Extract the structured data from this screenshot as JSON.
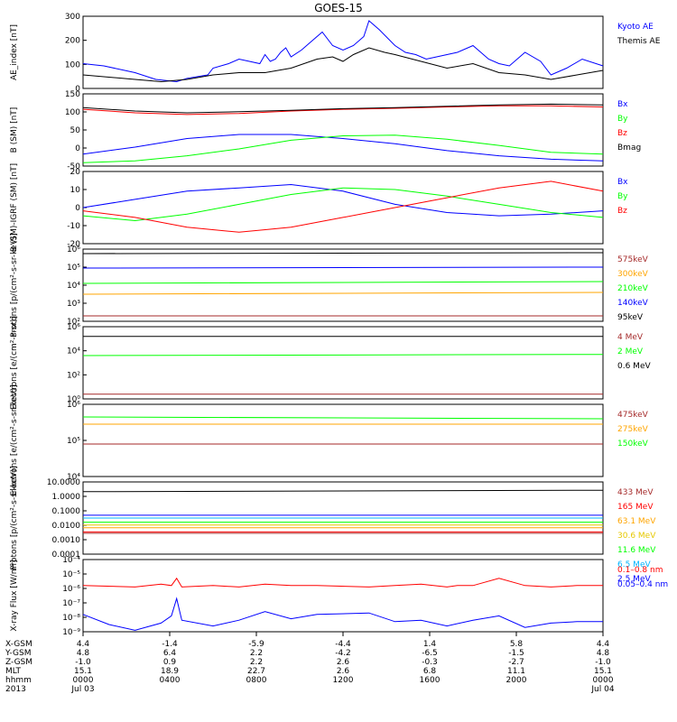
{
  "title": "GOES-15",
  "colors": {
    "black": "#000000",
    "blue": "#0000ff",
    "green": "#00ff00",
    "red": "#ff0000",
    "orange": "#ffa500",
    "yellow": "#e6c800",
    "cyan": "#00b4ff",
    "brown": "#a52a2a"
  },
  "chart_data": [
    {
      "type": "line",
      "ylabel": "AE_index [nT]",
      "yticks": [
        "300",
        "200",
        "100",
        "0"
      ],
      "yrange": [
        0,
        320
      ],
      "series": [
        {
          "name": "Kyoto AE",
          "color": "blue",
          "x": [
            0,
            4,
            8,
            10,
            14,
            18,
            20,
            24,
            25,
            28,
            30,
            32,
            34,
            35,
            36,
            37,
            38,
            39,
            40,
            42,
            44,
            46,
            48,
            50,
            52,
            54,
            55,
            57,
            60,
            62,
            64,
            66,
            68,
            70,
            72,
            75,
            78,
            80,
            82,
            85,
            88,
            90,
            93,
            96,
            100
          ],
          "y": [
            110,
            100,
            80,
            70,
            40,
            30,
            45,
            60,
            90,
            110,
            130,
            120,
            110,
            150,
            120,
            130,
            160,
            180,
            140,
            170,
            210,
            250,
            190,
            170,
            190,
            230,
            300,
            260,
            190,
            160,
            150,
            130,
            140,
            150,
            160,
            190,
            130,
            110,
            100,
            160,
            120,
            60,
            90,
            130,
            100
          ]
        },
        {
          "name": "Themis AE",
          "color": "black",
          "x": [
            0,
            5,
            10,
            15,
            20,
            25,
            30,
            35,
            40,
            45,
            48,
            50,
            52,
            55,
            58,
            60,
            65,
            70,
            75,
            80,
            85,
            90,
            95,
            100
          ],
          "y": [
            60,
            50,
            40,
            30,
            40,
            60,
            70,
            70,
            90,
            130,
            140,
            120,
            150,
            180,
            160,
            150,
            120,
            90,
            110,
            70,
            60,
            40,
            60,
            80
          ]
        }
      ]
    },
    {
      "type": "line",
      "ylabel": "B (SM) [nT]",
      "yticks": [
        "150",
        "100",
        "50",
        "0",
        "-50"
      ],
      "yrange": [
        -60,
        150
      ],
      "series": [
        {
          "name": "Bx",
          "color": "blue",
          "x": [
            0,
            10,
            20,
            30,
            40,
            50,
            60,
            70,
            80,
            90,
            100
          ],
          "y": [
            -25,
            -5,
            20,
            32,
            32,
            20,
            5,
            -15,
            -30,
            -40,
            -45
          ]
        },
        {
          "name": "By",
          "color": "green",
          "x": [
            0,
            10,
            20,
            30,
            40,
            50,
            60,
            70,
            80,
            90,
            100
          ],
          "y": [
            -50,
            -45,
            -30,
            -10,
            15,
            28,
            30,
            18,
            0,
            -20,
            -25
          ]
        },
        {
          "name": "Bz",
          "color": "red",
          "x": [
            0,
            10,
            20,
            30,
            40,
            50,
            60,
            70,
            80,
            90,
            100
          ],
          "y": [
            105,
            95,
            90,
            93,
            100,
            105,
            108,
            112,
            115,
            115,
            112
          ]
        },
        {
          "name": "Bmag",
          "color": "black",
          "x": [
            0,
            10,
            20,
            30,
            40,
            50,
            60,
            70,
            80,
            90,
            100
          ],
          "y": [
            110,
            100,
            95,
            98,
            102,
            107,
            110,
            114,
            118,
            120,
            118
          ]
        }
      ]
    },
    {
      "type": "line",
      "ylabel": "B (SM)-IGRF (SM) [nT]",
      "yticks": [
        "20",
        "10",
        "0",
        "-10",
        "-20"
      ],
      "yrange": [
        -22,
        22
      ],
      "series": [
        {
          "name": "Bx",
          "color": "blue",
          "x": [
            0,
            10,
            20,
            30,
            40,
            50,
            60,
            70,
            80,
            90,
            100
          ],
          "y": [
            0,
            5,
            10,
            12,
            14,
            10,
            2,
            -3,
            -5,
            -4,
            -2
          ]
        },
        {
          "name": "By",
          "color": "green",
          "x": [
            0,
            10,
            20,
            30,
            40,
            50,
            60,
            70,
            80,
            90,
            100
          ],
          "y": [
            -5,
            -8,
            -4,
            2,
            8,
            12,
            11,
            7,
            2,
            -3,
            -6
          ]
        },
        {
          "name": "Bz",
          "color": "red",
          "x": [
            0,
            10,
            20,
            30,
            40,
            50,
            60,
            70,
            80,
            90,
            100
          ],
          "y": [
            -2,
            -6,
            -12,
            -15,
            -12,
            -6,
            0,
            6,
            12,
            16,
            10
          ]
        }
      ]
    },
    {
      "type": "line",
      "ylabel": "Protons [p/(cm²-s-sr-keV)]",
      "yticks": [
        "10⁶",
        "10⁵",
        "10⁴",
        "10³",
        "10²"
      ],
      "log": true,
      "yrange": [
        2,
        6
      ],
      "series": [
        {
          "name": "575keV",
          "color": "brown",
          "x": [
            0,
            100
          ],
          "y": [
            2.3,
            2.3
          ]
        },
        {
          "name": "300keV",
          "color": "orange",
          "x": [
            0,
            100
          ],
          "y": [
            3.5,
            3.6
          ]
        },
        {
          "name": "210keV",
          "color": "green",
          "x": [
            0,
            100
          ],
          "y": [
            4.1,
            4.2
          ]
        },
        {
          "name": "140keV",
          "color": "blue",
          "x": [
            0,
            100
          ],
          "y": [
            4.95,
            5.0
          ]
        },
        {
          "name": "95keV",
          "color": "black",
          "x": [
            0,
            100
          ],
          "y": [
            5.75,
            5.8
          ]
        }
      ]
    },
    {
      "type": "line",
      "ylabel": "Electrons [e/(cm²-s-sr)]",
      "yticks": [
        "10⁶",
        "10⁴",
        "10²",
        "10⁰"
      ],
      "log": true,
      "yrange": [
        0,
        6
      ],
      "series": [
        {
          "name": "4 MeV",
          "color": "brown",
          "x": [
            0,
            100
          ],
          "y": [
            0.4,
            0.4
          ]
        },
        {
          "name": "2 MeV",
          "color": "green",
          "x": [
            0,
            100
          ],
          "y": [
            3.6,
            3.7
          ]
        },
        {
          "name": "0.6 MeV",
          "color": "black",
          "x": [
            0,
            100
          ],
          "y": [
            5.2,
            5.2
          ]
        }
      ]
    },
    {
      "type": "line",
      "ylabel": "Electrons [e/(cm²-s-sr-keV)]",
      "yticks": [
        "10⁶",
        "10⁵",
        "10⁴"
      ],
      "log": true,
      "yrange": [
        4,
        6
      ],
      "series": [
        {
          "name": "475keV",
          "color": "brown",
          "x": [
            0,
            100
          ],
          "y": [
            4.9,
            4.9
          ]
        },
        {
          "name": "275keV",
          "color": "orange",
          "x": [
            0,
            100
          ],
          "y": [
            5.45,
            5.45
          ]
        },
        {
          "name": "150keV",
          "color": "green",
          "x": [
            0,
            100
          ],
          "y": [
            5.65,
            5.6
          ]
        }
      ]
    },
    {
      "type": "line",
      "ylabel": "Protons [p/(cm²-s-sr-keV)]",
      "yticks": [
        "10.0000",
        "1.0000",
        "0.1000",
        "0.0100",
        "0.0010",
        "0.0001"
      ],
      "log": true,
      "yrange": [
        -4,
        1.2
      ],
      "series": [
        {
          "name": "433 MeV",
          "color": "brown",
          "x": [
            0,
            100
          ],
          "y": [
            -2.5,
            -2.5
          ]
        },
        {
          "name": "165 MeV",
          "color": "red",
          "x": [
            0,
            100
          ],
          "y": [
            -2.4,
            -2.4
          ]
        },
        {
          "name": "63.1 MeV",
          "color": "orange",
          "x": [
            0,
            100
          ],
          "y": [
            -2.1,
            -2.1
          ]
        },
        {
          "name": "30.6 MeV",
          "color": "yellow",
          "x": [
            0,
            100
          ],
          "y": [
            -1.9,
            -1.9
          ]
        },
        {
          "name": "11.6 MeV",
          "color": "green",
          "x": [
            0,
            100
          ],
          "y": [
            -1.7,
            -1.7
          ]
        },
        {
          "name": "6.5 MeV",
          "color": "cyan",
          "x": [
            0,
            100
          ],
          "y": [
            -1.4,
            -1.4
          ]
        },
        {
          "name": "2.5 MeV",
          "color": "blue",
          "x": [
            0,
            100
          ],
          "y": [
            -1.2,
            -1.2
          ]
        },
        {
          "name": "",
          "color": "black",
          "x": [
            0,
            100
          ],
          "y": [
            0.5,
            0.6
          ]
        }
      ]
    },
    {
      "type": "line",
      "ylabel": "X-ray Flux [W/m²]",
      "yticks": [
        "10⁻⁴",
        "10⁻⁵",
        "10⁻⁶",
        "10⁻⁷",
        "10⁻⁸",
        "10⁻⁹"
      ],
      "log": true,
      "yrange": [
        -9,
        -4
      ],
      "series": [
        {
          "name": "0.1–0.8 nm",
          "color": "red",
          "x": [
            0,
            10,
            15,
            17,
            18,
            19,
            25,
            30,
            35,
            40,
            45,
            55,
            60,
            65,
            70,
            72,
            75,
            80,
            85,
            90,
            95,
            100
          ],
          "y": [
            -5.8,
            -5.9,
            -5.7,
            -5.8,
            -5.3,
            -5.9,
            -5.8,
            -5.9,
            -5.7,
            -5.8,
            -5.8,
            -5.9,
            -5.8,
            -5.7,
            -5.9,
            -5.8,
            -5.8,
            -5.3,
            -5.8,
            -5.9,
            -5.8,
            -5.8
          ]
        },
        {
          "name": "0.05–0.4 nm",
          "color": "blue",
          "x": [
            0,
            5,
            10,
            15,
            17,
            18,
            19,
            25,
            30,
            35,
            40,
            45,
            55,
            60,
            65,
            70,
            75,
            80,
            85,
            90,
            95,
            100
          ],
          "y": [
            -7.8,
            -8.5,
            -8.9,
            -8.4,
            -7.9,
            -6.7,
            -8.2,
            -8.6,
            -8.2,
            -7.6,
            -8.1,
            -7.8,
            -7.7,
            -8.3,
            -8.2,
            -8.6,
            -8.2,
            -7.9,
            -8.7,
            -8.4,
            -8.3,
            -8.3
          ]
        }
      ]
    }
  ],
  "xaxis": {
    "labels": [
      {
        "row": "X-GSM",
        "vals": [
          "4.4",
          "-1.4",
          "-5.9",
          "-4.4",
          "1.4",
          "5.8",
          "4.4"
        ]
      },
      {
        "row": "Y-GSM",
        "vals": [
          "4.8",
          "6.4",
          "2.2",
          "-4.2",
          "-6.5",
          "-1.5",
          "4.8"
        ]
      },
      {
        "row": "Z-GSM",
        "vals": [
          "-1.0",
          "0.9",
          "2.2",
          "2.6",
          "-0.3",
          "-2.7",
          "-1.0"
        ]
      },
      {
        "row": "MLT",
        "vals": [
          "15.1",
          "18.9",
          "22.7",
          "2.6",
          "6.8",
          "11.1",
          "15.1"
        ]
      },
      {
        "row": "hhmm",
        "vals": [
          "0000",
          "0400",
          "0800",
          "1200",
          "1600",
          "2000",
          "0000"
        ]
      },
      {
        "row": "2013",
        "vals": [
          "Jul 03",
          "",
          "",
          "",
          "",
          "",
          "Jul 04"
        ]
      }
    ]
  }
}
